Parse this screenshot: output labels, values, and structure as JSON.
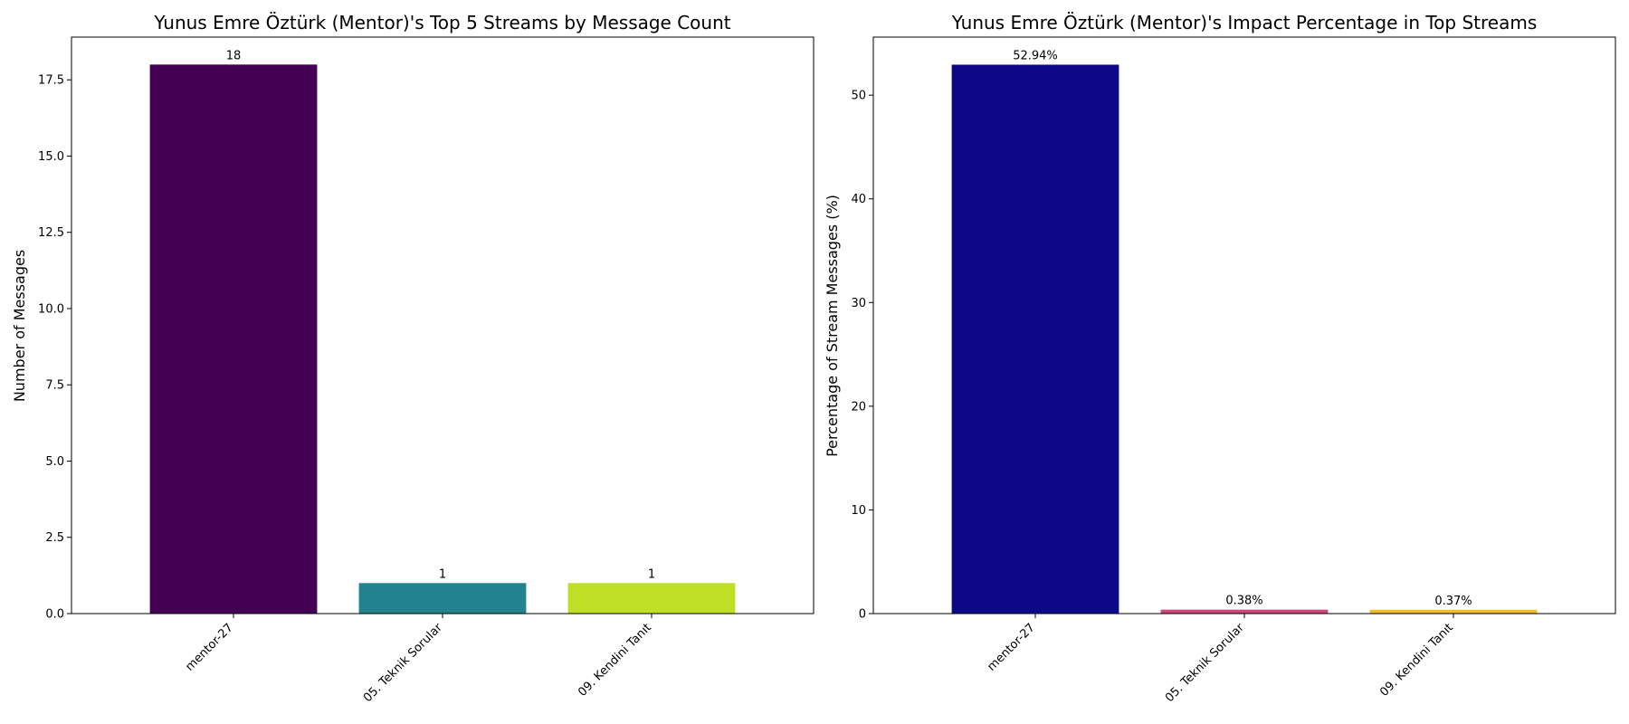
{
  "chart_data": [
    {
      "type": "bar",
      "title": "Yunus Emre Öztürk (Mentor)'s Top 5 Streams by Message Count",
      "xlabel": "",
      "ylabel": "Number of Messages",
      "categories": [
        "mentor-27",
        "05. Teknik Sorular",
        "09. Kendini Tanıt"
      ],
      "values": [
        18,
        1,
        1
      ],
      "value_labels": [
        "18",
        "1",
        "1"
      ],
      "colors": [
        "#440154",
        "#21838d",
        "#bddf26"
      ],
      "ylim": [
        0,
        18.9
      ],
      "yticks": [
        0,
        2.5,
        5,
        7.5,
        10,
        12.5,
        15,
        17.5
      ],
      "ytick_labels": [
        "0.0",
        "2.5",
        "5.0",
        "7.5",
        "10.0",
        "12.5",
        "15.0",
        "17.5"
      ],
      "grid": false
    },
    {
      "type": "bar",
      "title": "Yunus Emre Öztürk (Mentor)'s Impact Percentage in Top Streams",
      "xlabel": "",
      "ylabel": "Percentage of Stream Messages (%)",
      "categories": [
        "mentor-27",
        "05. Teknik Sorular",
        "09. Kendini Tanıt"
      ],
      "values": [
        52.94,
        0.38,
        0.37
      ],
      "value_labels": [
        "52.94%",
        "0.38%",
        "0.37%"
      ],
      "colors": [
        "#0d0887",
        "#cc4778",
        "#f0be27"
      ],
      "ylim": [
        0,
        55.6
      ],
      "yticks": [
        0,
        10,
        20,
        30,
        40,
        50
      ],
      "ytick_labels": [
        "0",
        "10",
        "20",
        "30",
        "40",
        "50"
      ],
      "grid": false
    }
  ]
}
